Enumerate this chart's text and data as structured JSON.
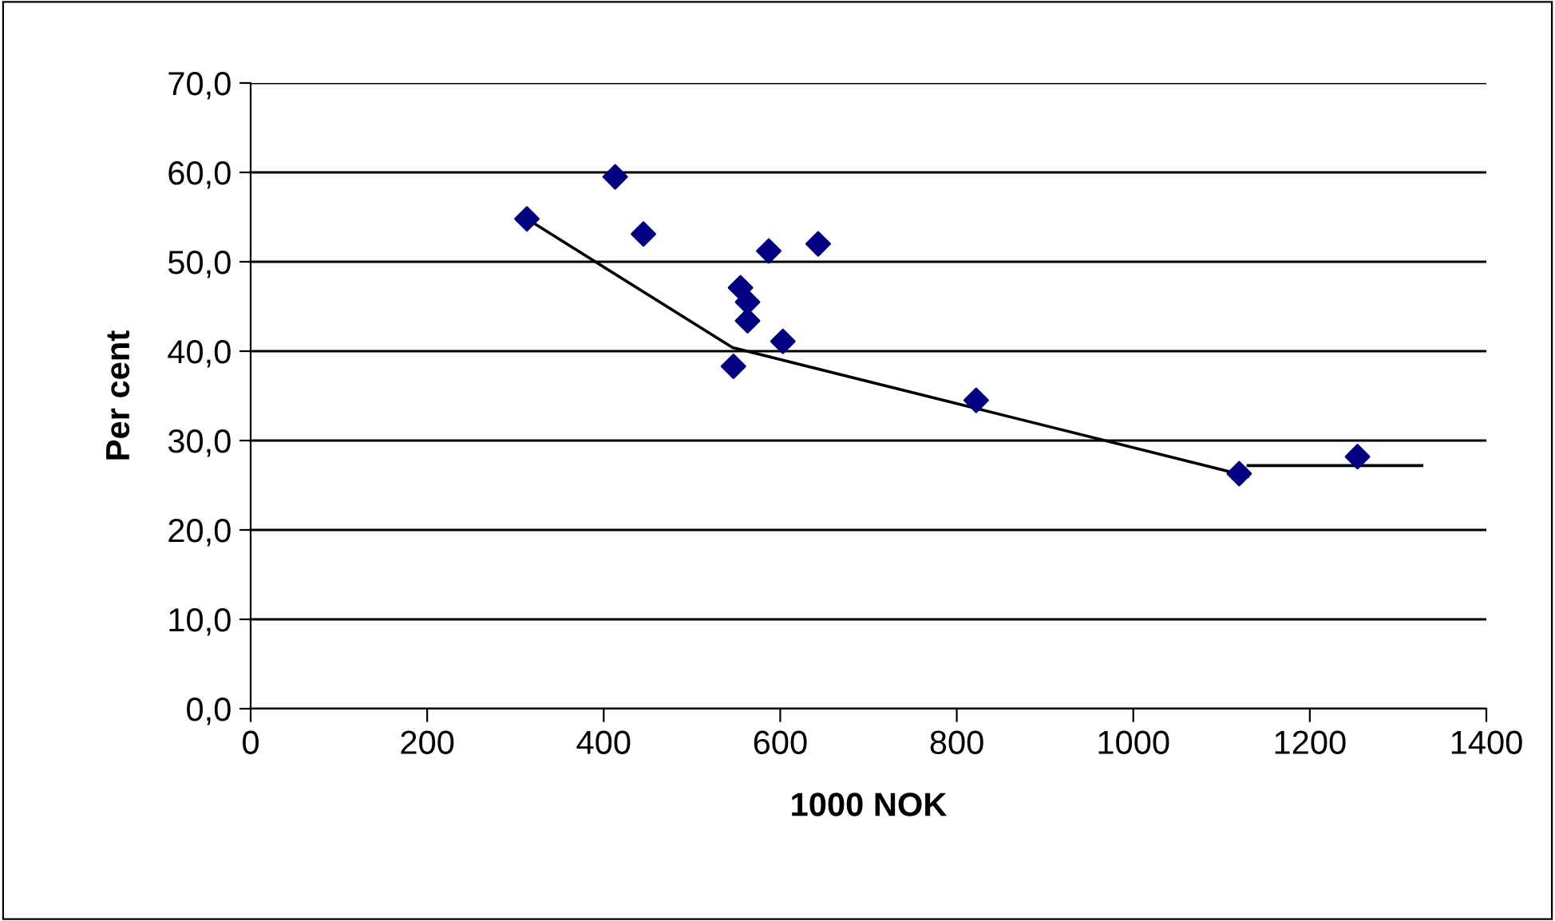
{
  "chart_data": {
    "type": "scatter",
    "xlabel": "1000 NOK",
    "ylabel": "Per cent",
    "series": [
      {
        "color": "#000080",
        "marker": "diamond",
        "x": [
          313,
          413,
          445,
          587,
          643,
          555,
          563,
          563,
          603,
          547,
          822,
          1120,
          1254
        ],
        "values": [
          54.8,
          59.5,
          53.1,
          51.2,
          52.0,
          47.1,
          45.5,
          43.4,
          41.1,
          38.3,
          34.5,
          26.3,
          28.2
        ]
      },
      {
        "type": "line",
        "color": "#000000",
        "marker": "none",
        "line_style": "solid",
        "x": [
          313,
          546,
          1130
        ],
        "values": [
          54.8,
          40.4,
          26.0
        ]
      },
      {
        "type": "line",
        "color": "#000000",
        "marker": "none",
        "line_style": "solid",
        "x": [
          1130,
          1327
        ],
        "values": [
          27.2,
          27.2
        ]
      }
    ],
    "xlim": [
      0,
      1400
    ],
    "xticks": [
      0,
      200,
      400,
      600,
      800,
      1000,
      1200,
      1400
    ],
    "ylim": [
      0,
      70
    ],
    "yticks": [
      {
        "value": 0,
        "label": "0,0"
      },
      {
        "value": 10,
        "label": "10,0"
      },
      {
        "value": 20,
        "label": "20,0"
      },
      {
        "value": 30,
        "label": "30,0"
      },
      {
        "value": 40,
        "label": "40,0"
      },
      {
        "value": 50,
        "label": "50,0"
      },
      {
        "value": 60,
        "label": "60,0"
      },
      {
        "value": 70,
        "label": "70,0"
      }
    ],
    "grid": "y",
    "legend": false
  }
}
